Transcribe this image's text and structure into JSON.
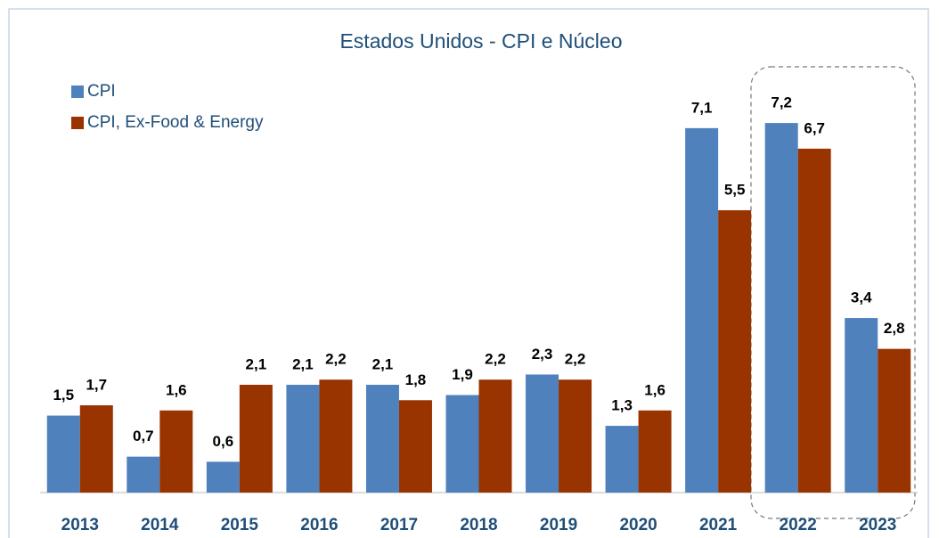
{
  "chart_data": {
    "type": "bar",
    "title": "Estados Unidos - CPI e Núcleo",
    "categories": [
      "2013",
      "2014",
      "2015",
      "2016",
      "2017",
      "2018",
      "2019",
      "2020",
      "2021",
      "2022",
      "2023"
    ],
    "series": [
      {
        "name": "CPI",
        "color": "#4f81bd",
        "values": [
          1.5,
          0.7,
          0.6,
          2.1,
          2.1,
          1.9,
          2.3,
          1.3,
          7.1,
          7.2,
          3.4
        ],
        "value_labels": [
          "1,5",
          "0,7",
          "0,6",
          "2,1",
          "2,1",
          "1,9",
          "2,3",
          "1,3",
          "7,1",
          "7,2",
          "3,4"
        ]
      },
      {
        "name": "CPI, Ex-Food & Energy",
        "color": "#993300",
        "values": [
          1.7,
          1.6,
          2.1,
          2.2,
          1.8,
          2.2,
          2.2,
          1.6,
          5.5,
          6.7,
          2.8
        ],
        "value_labels": [
          "1,7",
          "1,6",
          "2,1",
          "2,2",
          "1,8",
          "2,2",
          "2,2",
          "1,6",
          "5,5",
          "6,7",
          "2,8"
        ]
      }
    ],
    "ylim": [
      0,
      8
    ],
    "legend": "top-left"
  }
}
